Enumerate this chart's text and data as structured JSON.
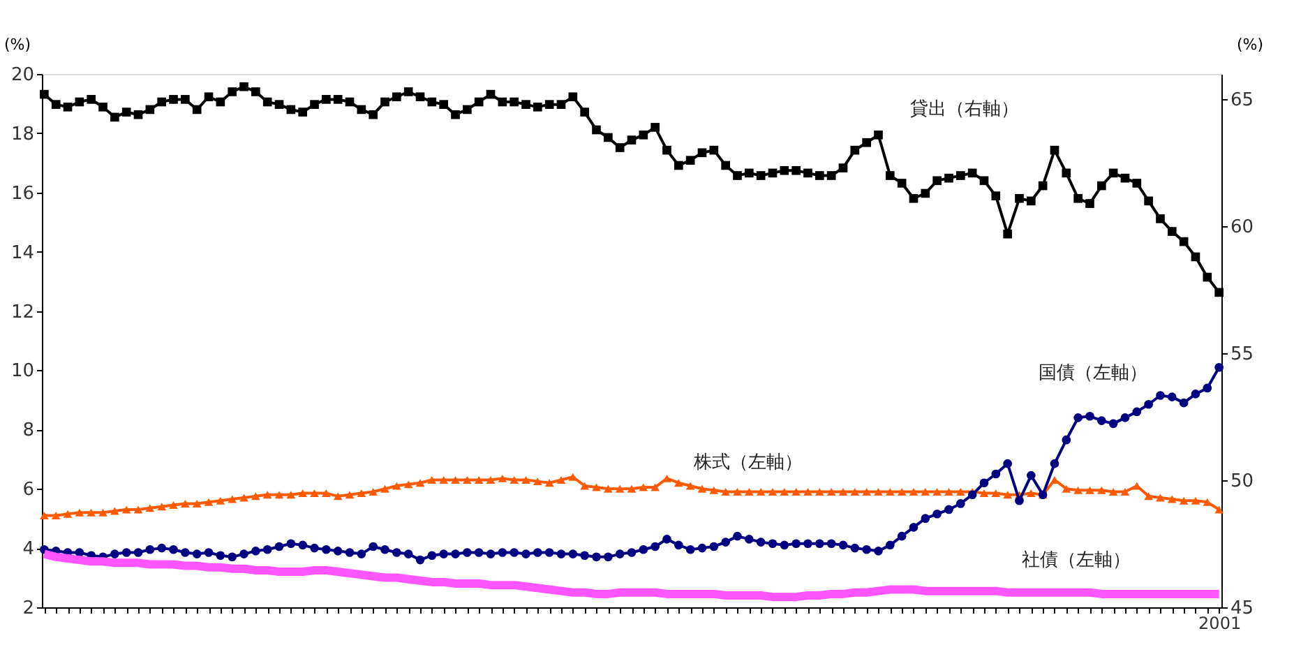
{
  "chart_data": {
    "type": "line",
    "categories": [
      null,
      null,
      null,
      null,
      null,
      null,
      null,
      null,
      null,
      null,
      null,
      null,
      null,
      null,
      null,
      null,
      null,
      null,
      null,
      null,
      null,
      null,
      null,
      null,
      null,
      null,
      null,
      null,
      null,
      null,
      null,
      null,
      null,
      null,
      null,
      null,
      null,
      null,
      null,
      null,
      null,
      null,
      null,
      null,
      null,
      null,
      null,
      null,
      null,
      null,
      null,
      null,
      null,
      null,
      null,
      null,
      null,
      null,
      null,
      null,
      null,
      null,
      null,
      null,
      null,
      null,
      null,
      null,
      null,
      null,
      null,
      null,
      null,
      null,
      null,
      null,
      null,
      null,
      null,
      null,
      null,
      null,
      null,
      null,
      null,
      null,
      null,
      null,
      null,
      null,
      null,
      null,
      null,
      null,
      null,
      null,
      null,
      null,
      null,
      null,
      "2001"
    ],
    "ylabel": "(%)",
    "y2label": "(%)",
    "ylim": [
      2,
      20
    ],
    "yticks": [
      2,
      4,
      6,
      8,
      10,
      12,
      14,
      16,
      18,
      20
    ],
    "y2lim": [
      45,
      66
    ],
    "y2ticks": [
      45,
      50,
      55,
      60,
      65
    ],
    "grid": false,
    "series": [
      {
        "name": "貸出（右軸）",
        "color": "#000000",
        "axis": "y2",
        "marker": "square",
        "values": [
          65.2,
          64.8,
          64.7,
          64.9,
          65.0,
          64.7,
          64.3,
          64.5,
          64.4,
          64.6,
          64.9,
          65.0,
          65.0,
          64.6,
          65.1,
          64.9,
          65.3,
          65.5,
          65.3,
          64.9,
          64.8,
          64.6,
          64.5,
          64.8,
          65.0,
          65.0,
          64.9,
          64.6,
          64.4,
          64.9,
          65.1,
          65.3,
          65.1,
          64.9,
          64.8,
          64.4,
          64.6,
          64.9,
          65.2,
          64.9,
          64.9,
          64.8,
          64.7,
          64.8,
          64.8,
          65.1,
          64.5,
          63.8,
          63.5,
          63.1,
          63.4,
          63.6,
          63.9,
          63.0,
          62.4,
          62.6,
          62.9,
          63.0,
          62.4,
          62.0,
          62.1,
          62.0,
          62.1,
          62.2,
          62.2,
          62.1,
          62.0,
          62.0,
          62.3,
          63.0,
          63.3,
          63.6,
          62.0,
          61.7,
          61.1,
          61.3,
          61.8,
          61.9,
          62.0,
          62.1,
          61.8,
          61.2,
          59.7,
          61.1,
          61.0,
          61.6,
          63.0,
          62.1,
          61.1,
          60.9,
          61.6,
          62.1,
          61.9,
          61.7,
          61.0,
          60.3,
          59.8,
          59.4,
          58.8,
          58.0,
          57.4
        ]
      },
      {
        "name": "株式（左軸）",
        "color": "#ff5a00",
        "marker": "triangle",
        "values": [
          5.1,
          5.1,
          5.15,
          5.2,
          5.2,
          5.2,
          5.25,
          5.3,
          5.3,
          5.35,
          5.4,
          5.45,
          5.5,
          5.5,
          5.55,
          5.6,
          5.65,
          5.7,
          5.75,
          5.8,
          5.8,
          5.8,
          5.85,
          5.85,
          5.85,
          5.75,
          5.8,
          5.85,
          5.9,
          6.0,
          6.1,
          6.15,
          6.2,
          6.3,
          6.3,
          6.3,
          6.3,
          6.3,
          6.3,
          6.35,
          6.3,
          6.3,
          6.25,
          6.2,
          6.3,
          6.4,
          6.1,
          6.05,
          6.0,
          6.0,
          6.0,
          6.05,
          6.05,
          6.35,
          6.2,
          6.1,
          6.0,
          5.95,
          5.9,
          5.9,
          5.9,
          5.9,
          5.9,
          5.9,
          5.9,
          5.9,
          5.9,
          5.9,
          5.9,
          5.9,
          5.9,
          5.9,
          5.9,
          5.9,
          5.9,
          5.9,
          5.9,
          5.9,
          5.9,
          5.9,
          5.85,
          5.85,
          5.8,
          5.8,
          5.85,
          5.8,
          6.3,
          6.0,
          5.95,
          5.95,
          5.95,
          5.9,
          5.9,
          6.1,
          5.75,
          5.7,
          5.65,
          5.6,
          5.6,
          5.55,
          5.3
        ]
      },
      {
        "name": "国債（左軸）",
        "color": "#000080",
        "marker": "circle",
        "values": [
          3.95,
          3.9,
          3.85,
          3.85,
          3.75,
          3.7,
          3.8,
          3.85,
          3.85,
          3.95,
          4.0,
          3.95,
          3.85,
          3.8,
          3.85,
          3.75,
          3.7,
          3.8,
          3.9,
          3.95,
          4.05,
          4.15,
          4.1,
          4.0,
          3.95,
          3.9,
          3.85,
          3.8,
          4.05,
          3.95,
          3.85,
          3.8,
          3.6,
          3.75,
          3.8,
          3.8,
          3.85,
          3.85,
          3.8,
          3.85,
          3.85,
          3.8,
          3.85,
          3.85,
          3.8,
          3.8,
          3.75,
          3.7,
          3.7,
          3.8,
          3.85,
          3.95,
          4.05,
          4.3,
          4.1,
          3.95,
          4.0,
          4.05,
          4.2,
          4.4,
          4.3,
          4.2,
          4.15,
          4.1,
          4.15,
          4.15,
          4.15,
          4.15,
          4.1,
          4.0,
          3.95,
          3.9,
          4.1,
          4.4,
          4.7,
          5.0,
          5.15,
          5.3,
          5.5,
          5.8,
          6.2,
          6.5,
          6.85,
          5.6,
          6.45,
          5.8,
          6.85,
          7.65,
          8.4,
          8.45,
          8.3,
          8.2,
          8.4,
          8.6,
          8.85,
          9.15,
          9.1,
          8.9,
          9.2,
          9.4,
          10.1
        ]
      },
      {
        "name": "社債（左軸）",
        "color": "#ff55ff",
        "marker": "none",
        "values": [
          3.8,
          3.7,
          3.65,
          3.6,
          3.55,
          3.55,
          3.5,
          3.5,
          3.5,
          3.45,
          3.45,
          3.45,
          3.4,
          3.4,
          3.35,
          3.35,
          3.3,
          3.3,
          3.25,
          3.25,
          3.2,
          3.2,
          3.2,
          3.25,
          3.25,
          3.2,
          3.15,
          3.1,
          3.05,
          3.0,
          3.0,
          2.95,
          2.9,
          2.85,
          2.85,
          2.8,
          2.8,
          2.8,
          2.75,
          2.75,
          2.75,
          2.7,
          2.65,
          2.6,
          2.55,
          2.5,
          2.5,
          2.45,
          2.45,
          2.5,
          2.5,
          2.5,
          2.5,
          2.45,
          2.45,
          2.45,
          2.45,
          2.45,
          2.4,
          2.4,
          2.4,
          2.4,
          2.35,
          2.35,
          2.35,
          2.4,
          2.4,
          2.45,
          2.45,
          2.5,
          2.5,
          2.55,
          2.6,
          2.6,
          2.6,
          2.55,
          2.55,
          2.55,
          2.55,
          2.55,
          2.55,
          2.55,
          2.5,
          2.5,
          2.5,
          2.5,
          2.5,
          2.5,
          2.5,
          2.5,
          2.45,
          2.45,
          2.45,
          2.45,
          2.45,
          2.45,
          2.45,
          2.45,
          2.45,
          2.45,
          2.45
        ]
      }
    ]
  }
}
